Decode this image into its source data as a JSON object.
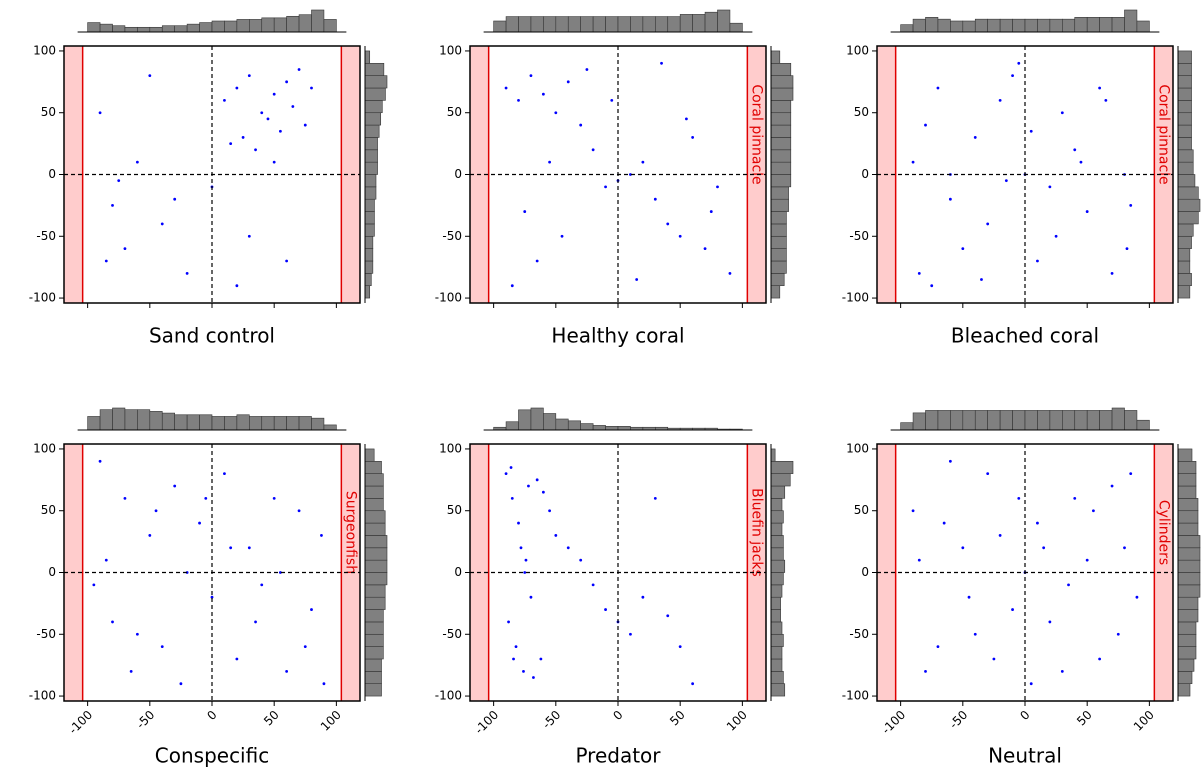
{
  "chart_data": [
    {
      "type": "scatter",
      "title": "Sand control",
      "color": "#0000ff",
      "xlim": [
        -119,
        119
      ],
      "ylim": [
        -104,
        104
      ],
      "xticks": [
        -100,
        -50,
        0,
        50,
        100
      ],
      "yticks": [
        -100,
        -50,
        0,
        50,
        100
      ],
      "xtick_labels": false,
      "zones": [
        [
          -119,
          -104
        ],
        [
          104,
          119
        ]
      ],
      "ref_lines": {
        "x": 0,
        "y": 0
      },
      "x": [
        10,
        20,
        30,
        40,
        50,
        60,
        70,
        75,
        25,
        45,
        65,
        15,
        35,
        55,
        80,
        -60,
        -75,
        -80,
        -70,
        -40,
        -20,
        -90,
        -50,
        0,
        30,
        60,
        -85,
        -30,
        50,
        20
      ],
      "y": [
        60,
        70,
        80,
        50,
        65,
        75,
        85,
        40,
        30,
        45,
        55,
        25,
        20,
        35,
        70,
        10,
        -5,
        -25,
        -60,
        -40,
        -80,
        50,
        80,
        -10,
        -50,
        -70,
        -70,
        -20,
        10,
        -90
      ],
      "hist_x": {
        "bins": [
          -100,
          -90,
          -80,
          -70,
          -60,
          -50,
          -40,
          -30,
          -20,
          -10,
          0,
          10,
          20,
          30,
          40,
          50,
          60,
          70,
          80,
          90,
          100
        ],
        "counts": [
          6,
          5,
          4,
          3,
          3,
          3,
          4,
          4,
          5,
          6,
          7,
          7,
          8,
          8,
          9,
          9,
          10,
          11,
          14,
          8
        ]
      },
      "hist_y": {
        "bins": [
          -100,
          -90,
          -80,
          -70,
          -60,
          -50,
          -40,
          -30,
          -20,
          -10,
          0,
          10,
          20,
          30,
          40,
          50,
          60,
          70,
          80,
          90,
          100
        ],
        "counts": [
          3,
          4,
          5,
          5,
          5,
          6,
          6,
          6,
          7,
          7,
          8,
          8,
          8,
          9,
          10,
          11,
          13,
          14,
          12,
          3
        ]
      }
    },
    {
      "type": "scatter",
      "title": "Healthy coral",
      "zone_label": "Coral pinnacle",
      "color": "#0000ff",
      "xlim": [
        -119,
        119
      ],
      "ylim": [
        -104,
        104
      ],
      "xticks": [
        -100,
        -50,
        0,
        50,
        100
      ],
      "yticks": [
        -100,
        -50,
        0,
        50,
        100
      ],
      "xtick_labels": false,
      "zones": [
        [
          -119,
          -104
        ],
        [
          104,
          119
        ]
      ],
      "ref_lines": {
        "x": 0,
        "y": 0
      },
      "x": [
        -90,
        -80,
        -70,
        -60,
        -50,
        -40,
        -30,
        -20,
        -10,
        0,
        10,
        20,
        30,
        40,
        50,
        60,
        70,
        80,
        90,
        -85,
        -75,
        -65,
        -55,
        -45,
        -25,
        -5,
        15,
        35,
        55,
        75
      ],
      "y": [
        70,
        60,
        80,
        65,
        50,
        75,
        40,
        20,
        -10,
        -5,
        0,
        10,
        -20,
        -40,
        -50,
        30,
        -60,
        -10,
        -80,
        -90,
        -30,
        -70,
        10,
        -50,
        85,
        60,
        -85,
        90,
        45,
        -30
      ],
      "hist_x": {
        "bins": [
          -100,
          -90,
          -80,
          -70,
          -60,
          -50,
          -40,
          -30,
          -20,
          -10,
          0,
          10,
          20,
          30,
          40,
          50,
          60,
          70,
          80,
          90,
          100
        ],
        "counts": [
          5,
          7,
          7,
          7,
          7,
          7,
          7,
          7,
          7,
          7,
          7,
          7,
          7,
          7,
          7,
          8,
          8,
          9,
          10,
          4
        ]
      },
      "hist_y": {
        "bins": [
          -100,
          -90,
          -80,
          -70,
          -60,
          -50,
          -40,
          -30,
          -20,
          -10,
          0,
          10,
          20,
          30,
          40,
          50,
          60,
          70,
          80,
          90,
          100
        ],
        "counts": [
          4,
          6,
          7,
          7,
          7,
          7,
          7,
          8,
          8,
          9,
          9,
          9,
          9,
          9,
          9,
          9,
          10,
          10,
          9,
          4
        ]
      }
    },
    {
      "type": "scatter",
      "title": "Bleached coral",
      "zone_label": "Coral pinnacle",
      "color": "#0000ff",
      "xlim": [
        -119,
        119
      ],
      "ylim": [
        -104,
        104
      ],
      "xticks": [
        -100,
        -50,
        0,
        50,
        100
      ],
      "yticks": [
        -100,
        -50,
        0,
        50,
        100
      ],
      "xtick_labels": false,
      "zones": [
        [
          -119,
          -104
        ],
        [
          104,
          119
        ]
      ],
      "ref_lines": {
        "x": 0,
        "y": 0
      },
      "x": [
        -85,
        -75,
        -60,
        -40,
        -20,
        0,
        20,
        40,
        60,
        80,
        85,
        -90,
        -70,
        -50,
        -30,
        -10,
        10,
        30,
        50,
        70,
        -80,
        -60,
        -35,
        -15,
        5,
        25,
        45,
        65,
        82,
        -5
      ],
      "y": [
        -80,
        -90,
        -20,
        30,
        60,
        0,
        -10,
        20,
        70,
        0,
        -25,
        10,
        70,
        -60,
        -40,
        80,
        -70,
        50,
        -30,
        -80,
        40,
        0,
        -85,
        -5,
        35,
        -50,
        10,
        60,
        -60,
        90
      ],
      "hist_x": {
        "bins": [
          -100,
          -90,
          -80,
          -70,
          -60,
          -50,
          -40,
          -30,
          -20,
          -10,
          0,
          10,
          20,
          30,
          40,
          50,
          60,
          70,
          80,
          90,
          100
        ],
        "counts": [
          4,
          7,
          8,
          7,
          6,
          6,
          7,
          7,
          7,
          7,
          7,
          7,
          7,
          7,
          8,
          8,
          8,
          8,
          12,
          6
        ]
      },
      "hist_y": {
        "bins": [
          -100,
          -90,
          -80,
          -70,
          -60,
          -50,
          -40,
          -30,
          -20,
          -10,
          0,
          10,
          20,
          30,
          40,
          50,
          60,
          70,
          80,
          90,
          100
        ],
        "counts": [
          7,
          8,
          7,
          7,
          8,
          9,
          12,
          13,
          12,
          10,
          9,
          9,
          8,
          8,
          8,
          8,
          8,
          8,
          8,
          8
        ]
      }
    },
    {
      "type": "scatter",
      "title": "Conspecific",
      "zone_label": "Surgeonfish",
      "color": "#0000ff",
      "xlim": [
        -119,
        119
      ],
      "ylim": [
        -104,
        104
      ],
      "xticks": [
        -100,
        -50,
        0,
        50,
        100
      ],
      "yticks": [
        -100,
        -50,
        0,
        50,
        100
      ],
      "xtick_labels": true,
      "zones": [
        [
          -119,
          -104
        ],
        [
          104,
          119
        ]
      ],
      "ref_lines": {
        "x": 0,
        "y": 0
      },
      "x": [
        -90,
        -70,
        -50,
        -30,
        -10,
        10,
        30,
        50,
        70,
        90,
        -80,
        -60,
        -40,
        -20,
        0,
        20,
        40,
        60,
        80,
        -85,
        -65,
        -45,
        -25,
        -5,
        15,
        35,
        55,
        75,
        88,
        -95
      ],
      "y": [
        90,
        60,
        30,
        70,
        40,
        80,
        20,
        60,
        50,
        -90,
        -40,
        -50,
        -60,
        0,
        -20,
        -70,
        -10,
        -80,
        -30,
        10,
        -80,
        50,
        -90,
        60,
        20,
        -40,
        0,
        -60,
        30,
        -10
      ],
      "hist_x": {
        "bins": [
          -100,
          -90,
          -80,
          -70,
          -60,
          -50,
          -40,
          -30,
          -20,
          -10,
          0,
          10,
          20,
          30,
          40,
          50,
          60,
          70,
          80,
          90,
          100
        ],
        "counts": [
          8,
          12,
          13,
          12,
          12,
          11,
          10,
          9,
          9,
          9,
          8,
          8,
          9,
          8,
          8,
          8,
          8,
          8,
          7,
          3
        ]
      },
      "hist_y": {
        "bins": [
          -100,
          -90,
          -80,
          -70,
          -60,
          -50,
          -40,
          -30,
          -20,
          -10,
          0,
          10,
          20,
          30,
          40,
          50,
          60,
          70,
          80,
          90,
          100
        ],
        "counts": [
          9,
          9,
          9,
          10,
          10,
          10,
          10,
          11,
          11,
          12,
          12,
          12,
          12,
          11,
          11,
          10,
          10,
          10,
          9,
          5
        ]
      }
    },
    {
      "type": "scatter",
      "title": "Predator",
      "zone_label": "Bluefin jacks",
      "color": "#0000ff",
      "xlim": [
        -119,
        119
      ],
      "ylim": [
        -104,
        104
      ],
      "xticks": [
        -100,
        -50,
        0,
        50,
        100
      ],
      "yticks": [
        -100,
        -50,
        0,
        50,
        100
      ],
      "xtick_labels": true,
      "zones": [
        [
          -119,
          -104
        ],
        [
          104,
          119
        ]
      ],
      "ref_lines": {
        "x": 0,
        "y": 0
      },
      "x": [
        -90,
        -85,
        -80,
        -78,
        -75,
        -70,
        -72,
        -65,
        -60,
        -55,
        -88,
        -82,
        -76,
        -68,
        -50,
        -40,
        -30,
        -20,
        -10,
        0,
        10,
        20,
        40,
        50,
        60,
        -86,
        -84,
        -74,
        -62,
        30
      ],
      "y": [
        80,
        60,
        40,
        20,
        0,
        -20,
        70,
        75,
        65,
        50,
        -40,
        -60,
        -80,
        -85,
        30,
        20,
        10,
        -10,
        -30,
        -40,
        -50,
        -20,
        -35,
        -60,
        -90,
        85,
        -70,
        10,
        -70,
        60
      ],
      "hist_x": {
        "bins": [
          -100,
          -90,
          -80,
          -70,
          -60,
          -50,
          -40,
          -30,
          -20,
          -10,
          0,
          10,
          20,
          30,
          40,
          50,
          60,
          70,
          80,
          90,
          100
        ],
        "counts": [
          3,
          9,
          22,
          24,
          18,
          12,
          10,
          7,
          5,
          4,
          4,
          3,
          3,
          3,
          2,
          2,
          2,
          2,
          1,
          1
        ]
      },
      "hist_y": {
        "bins": [
          -100,
          -90,
          -80,
          -70,
          -60,
          -50,
          -40,
          -30,
          -20,
          -10,
          0,
          10,
          20,
          30,
          40,
          50,
          60,
          70,
          80,
          90,
          100
        ],
        "counts": [
          10,
          9,
          8,
          8,
          9,
          8,
          7,
          7,
          8,
          9,
          10,
          9,
          9,
          8,
          9,
          8,
          10,
          14,
          16,
          3
        ]
      }
    },
    {
      "type": "scatter",
      "title": "Neutral",
      "zone_label": "Cylinders",
      "color": "#0000ff",
      "xlim": [
        -119,
        119
      ],
      "ylim": [
        -104,
        104
      ],
      "xticks": [
        -100,
        -50,
        0,
        50,
        100
      ],
      "yticks": [
        -100,
        -50,
        0,
        50,
        100
      ],
      "xtick_labels": true,
      "zones": [
        [
          -119,
          -104
        ],
        [
          104,
          119
        ]
      ],
      "ref_lines": {
        "x": 0,
        "y": 0
      },
      "x": [
        -90,
        -70,
        -50,
        -30,
        -10,
        10,
        30,
        50,
        70,
        90,
        -80,
        -60,
        -40,
        -20,
        0,
        20,
        40,
        60,
        80,
        -85,
        -65,
        -45,
        -25,
        -5,
        15,
        35,
        55,
        75,
        85,
        5
      ],
      "y": [
        50,
        -60,
        20,
        80,
        -30,
        40,
        -80,
        10,
        70,
        -20,
        -80,
        90,
        -50,
        30,
        0,
        -40,
        60,
        -70,
        20,
        10,
        40,
        -20,
        -70,
        60,
        20,
        -10,
        50,
        -50,
        80,
        -90
      ],
      "hist_x": {
        "bins": [
          -100,
          -90,
          -80,
          -70,
          -60,
          -50,
          -40,
          -30,
          -20,
          -10,
          0,
          10,
          20,
          30,
          40,
          50,
          60,
          70,
          80,
          90,
          100
        ],
        "counts": [
          3,
          7,
          8,
          8,
          8,
          8,
          8,
          8,
          8,
          8,
          8,
          8,
          8,
          8,
          8,
          8,
          8,
          9,
          8,
          4
        ]
      },
      "hist_y": {
        "bins": [
          -100,
          -90,
          -80,
          -70,
          -60,
          -50,
          -40,
          -30,
          -20,
          -10,
          0,
          10,
          20,
          30,
          40,
          50,
          60,
          70,
          80,
          90,
          100
        ],
        "counts": [
          6,
          7,
          8,
          9,
          9,
          9,
          10,
          10,
          11,
          11,
          11,
          11,
          11,
          10,
          10,
          10,
          9,
          9,
          9,
          7
        ]
      }
    }
  ]
}
